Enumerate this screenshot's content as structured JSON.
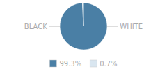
{
  "chart_data": {
    "type": "pie",
    "categories": [
      "BLACK",
      "WHITE"
    ],
    "values": [
      99.3,
      0.7
    ],
    "colors": [
      "#4a7fa5",
      "#d9e6f0"
    ],
    "value_labels": [
      "99.3%",
      "0.7%"
    ],
    "legend": "bottom"
  }
}
